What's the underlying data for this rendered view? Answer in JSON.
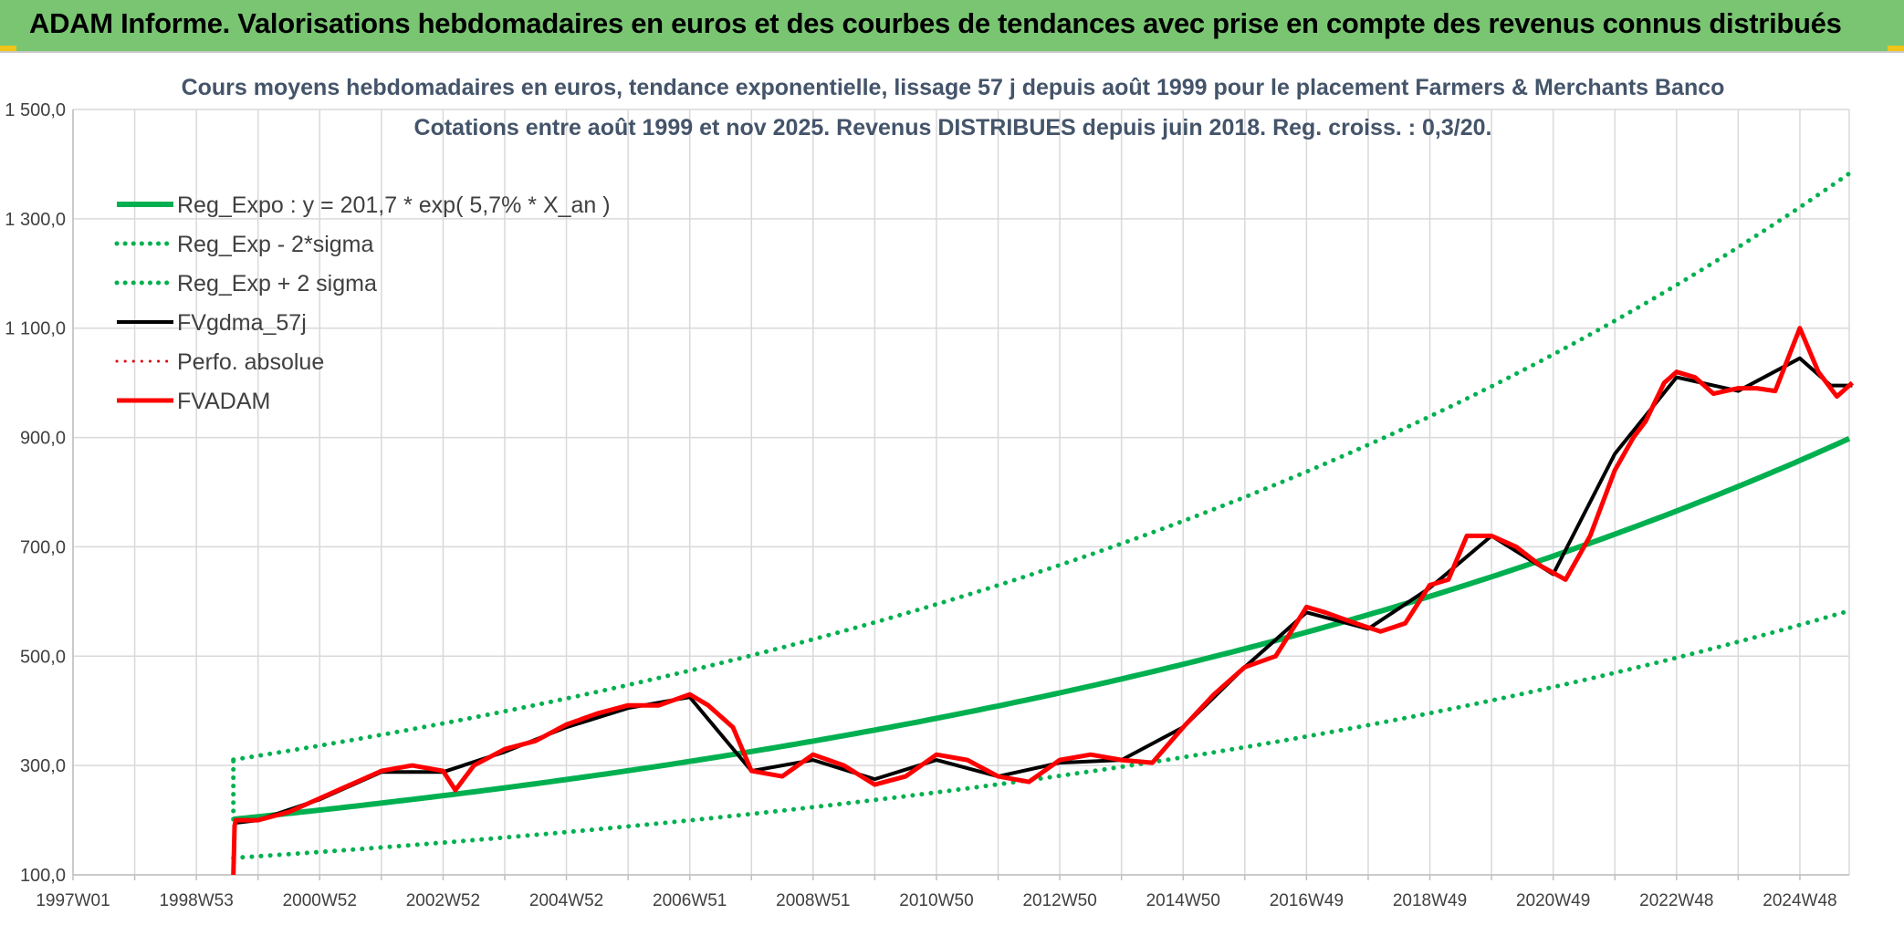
{
  "header": {
    "title": "ADAM Informe. Valorisations hebdomadaires en euros et des courbes de tendances avec prise en compte des revenus connus distribués"
  },
  "chart_data": {
    "type": "line",
    "title_line1": "Cours moyens hebdomadaires en euros, tendance exponentielle, lissage 57 j depuis août 1999 pour le placement Farmers & Merchants Banco",
    "title_line2": "Cotations entre août 1999 et nov 2025. Revenus DISTRIBUES depuis juin 2018. Reg. croiss. : 0,3/20.",
    "xlabel": "",
    "ylabel": "",
    "ylim": [
      100,
      1500
    ],
    "xlim": [
      1997.0,
      2025.8
    ],
    "grid": true,
    "legend_position": "top-left",
    "y_ticks": [
      "1 500,0",
      "1 300,0",
      "1 100,0",
      "900,0",
      "700,0",
      "500,0",
      "300,0",
      "100,0"
    ],
    "y_tick_values": [
      1500,
      1300,
      1100,
      900,
      700,
      500,
      300,
      100
    ],
    "x_ticks": [
      "1997W01",
      "1998W53",
      "2000W52",
      "2002W52",
      "2004W52",
      "2006W51",
      "2008W51",
      "2010W50",
      "2012W50",
      "2014W50",
      "2016W49",
      "2018W49",
      "2020W49",
      "2022W48",
      "2024W48"
    ],
    "x_tick_values": [
      1997.0,
      1999.0,
      2001.0,
      2003.0,
      2005.0,
      2007.0,
      2009.0,
      2011.0,
      2013.0,
      2015.0,
      2017.0,
      2019.0,
      2021.0,
      2023.0,
      2025.0
    ],
    "regression": {
      "a": 201.7,
      "rate": 0.057,
      "start_year": 1999.6,
      "end_year": 2025.85,
      "sigma_factor": 1.54
    },
    "series": [
      {
        "name": "Reg_Expo : y = 201,7 * exp( 5,7% *  X_an )",
        "color": "#00b050",
        "style": "solid",
        "width": 6
      },
      {
        "name": "Reg_Exp - 2*sigma",
        "color": "#00b050",
        "style": "dotted",
        "width": 5
      },
      {
        "name": "Reg_Exp + 2 sigma",
        "color": "#00b050",
        "style": "dotted",
        "width": 5
      },
      {
        "name": "FVgdma_57j",
        "color": "#000000",
        "style": "solid",
        "width": 4
      },
      {
        "name": "Perfo. absolue",
        "color": "#e00000",
        "style": "dotted",
        "width": 3
      },
      {
        "name": "FVADAM",
        "color": "#ff0000",
        "style": "solid",
        "width": 5
      }
    ],
    "fvadam": {
      "x": [
        1999.6,
        1999.62,
        1999.64,
        2000.0,
        2000.5,
        2001.0,
        2001.5,
        2002.0,
        2002.5,
        2003.0,
        2003.2,
        2003.5,
        2004.0,
        2004.5,
        2005.0,
        2005.5,
        2006.0,
        2006.5,
        2007.0,
        2007.3,
        2007.7,
        2008.0,
        2008.5,
        2009.0,
        2009.5,
        2010.0,
        2010.5,
        2011.0,
        2011.5,
        2012.0,
        2012.5,
        2013.0,
        2013.5,
        2014.0,
        2014.5,
        2015.0,
        2015.5,
        2016.0,
        2016.5,
        2017.0,
        2017.3,
        2017.8,
        2018.2,
        2018.6,
        2019.0,
        2019.3,
        2019.6,
        2020.0,
        2020.4,
        2020.8,
        2021.2,
        2021.6,
        2022.0,
        2022.3,
        2022.5,
        2022.8,
        2023.0,
        2023.3,
        2023.6,
        2024.0,
        2024.3,
        2024.6,
        2025.0,
        2025.3,
        2025.6,
        2025.85
      ],
      "y": [
        100,
        190,
        200,
        200,
        215,
        240,
        265,
        290,
        300,
        290,
        255,
        300,
        330,
        345,
        375,
        395,
        410,
        410,
        430,
        410,
        370,
        290,
        280,
        320,
        300,
        265,
        280,
        320,
        310,
        280,
        270,
        310,
        320,
        310,
        305,
        370,
        430,
        480,
        500,
        590,
        580,
        560,
        545,
        560,
        630,
        640,
        720,
        720,
        700,
        665,
        640,
        720,
        840,
        900,
        930,
        1000,
        1020,
        1010,
        980,
        990,
        990,
        985,
        1100,
        1020,
        975,
        1000
      ]
    },
    "fvgdma_57j": {
      "x": [
        1999.62,
        2000.0,
        2001.0,
        2002.0,
        2003.0,
        2004.0,
        2005.0,
        2006.0,
        2007.0,
        2008.0,
        2009.0,
        2010.0,
        2011.0,
        2012.0,
        2013.0,
        2014.0,
        2015.0,
        2016.0,
        2017.0,
        2018.0,
        2019.0,
        2020.0,
        2021.0,
        2022.0,
        2023.0,
        2024.0,
        2025.0,
        2025.5,
        2025.85
      ],
      "y": [
        195,
        200,
        238,
        288,
        288,
        325,
        370,
        405,
        425,
        290,
        310,
        275,
        310,
        280,
        305,
        310,
        370,
        480,
        580,
        550,
        625,
        720,
        650,
        870,
        1010,
        985,
        1045,
        995,
        995
      ]
    },
    "ordinate_at_start": 100
  }
}
